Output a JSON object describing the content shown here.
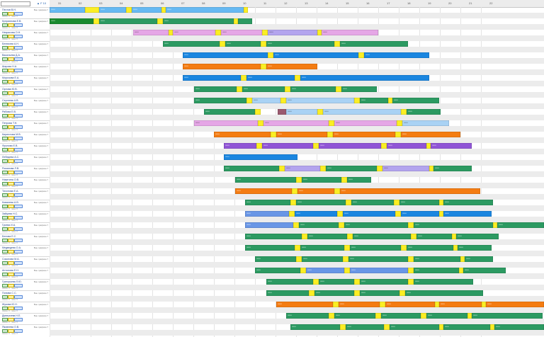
{
  "toolbar": {
    "sort_label": "▲ F 10"
  },
  "colors": {
    "green": "#2c9a62",
    "blue": "#1a86e0",
    "orange": "#f47c12",
    "purple": "#9055d6",
    "pink": "#e5a6e6",
    "lilac": "#b3a4ee",
    "sky": "#66b9f2",
    "yellow": "#fbee24",
    "dkgreen": "#198a2e",
    "light": "#a9d2f4",
    "cornflower": "#6996e6",
    "wine": "#9a5a6f"
  },
  "timeline": {
    "days": [
      "31",
      "02",
      "03",
      "04",
      "05",
      "06",
      "07",
      "08",
      "09",
      "10",
      "11",
      "12",
      "13",
      "14",
      "15",
      "16",
      "17",
      "18",
      "19",
      "20",
      "21",
      "22"
    ]
  },
  "employees": [
    {
      "name": "Пестов В.Н.",
      "status": "Вне графика 7",
      "sub": "смены: 0 · часы: 0"
    },
    {
      "name": "Куприянова Е.В.",
      "status": "Вне графика 7",
      "sub": "смены: 0 · часы: 0"
    },
    {
      "name": "Некрасова О.Н.",
      "status": "Вне графика 7",
      "sub": "смены: 0 · часы: 0"
    },
    {
      "name": "Беликова А.Н.",
      "status": "Вне графика 7",
      "sub": "смены: 0 · часы: 0"
    },
    {
      "name": "Васильева Д.А.",
      "status": "Вне графика 7",
      "sub": "смены: 0 · часы: 0"
    },
    {
      "name": "Шарова Н.А.",
      "status": "Вне графика 7",
      "sub": "смены: 0 · часы: 0"
    },
    {
      "name": "Морозова Е.А.",
      "status": "Вне графика 7",
      "sub": "смены: 0 · часы: 0"
    },
    {
      "name": "Орлова Ю.В.",
      "status": "Вне графика 7",
      "sub": "смены: 0 · часы: 0"
    },
    {
      "name": "Сергеева А.В.",
      "status": "Вне графика 7",
      "sub": "смены: 0 · часы: 0"
    },
    {
      "name": "Рябова Е.В.",
      "status": "Вне графика 7",
      "sub": "смены: 0 · часы: 0"
    },
    {
      "name": "Петрова Т.Н.",
      "status": "Вне графика 7",
      "sub": "смены: 0 · часы: 0"
    },
    {
      "name": "Кириллова М.В.",
      "status": "Вне графика 7",
      "sub": "смены: 0 · часы: 0"
    },
    {
      "name": "Фролова Е.В.",
      "status": "Вне графика 7",
      "sub": "смены: 0 · часы: 0"
    },
    {
      "name": "Лебедева А.С.",
      "status": "Вне графика 7",
      "sub": "смены: 0 · часы: 0"
    },
    {
      "name": "Романова Л.В.",
      "status": "Вне графика 7",
      "sub": "смены: 0 · часы: 0"
    },
    {
      "name": "Никитина О.В.",
      "status": "Вне графика 7",
      "sub": "смены: 0 · часы: 0"
    },
    {
      "name": "Тихонова Е.А.",
      "status": "Вне графика 7",
      "sub": "смены: 0 · часы: 0"
    },
    {
      "name": "Ковалева А.В.",
      "status": "Вне графика 7",
      "sub": "смены: 0 · часы: 0"
    },
    {
      "name": "Зайцева Н.С.",
      "status": "Вне графика 7",
      "sub": "смены: 0 · часы: 0"
    },
    {
      "name": "Гусева И.А.",
      "status": "Вне графика 7",
      "sub": "смены: 0 · часы: 0"
    },
    {
      "name": "Белова Е.С.",
      "status": "Вне графика 7",
      "sub": "смены: 0 · часы: 0"
    },
    {
      "name": "Медведева О.А.",
      "status": "Вне графика 7",
      "sub": "смены: 0 · часы: 0"
    },
    {
      "name": "Соколова М.А.",
      "status": "Вне графика 7",
      "sub": "смены: 0 · часы: 0"
    },
    {
      "name": "Антонова Е.Н.",
      "status": "Вне графика 7",
      "sub": "смены: 0 · часы: 0"
    },
    {
      "name": "Григорьева Л.Ю.",
      "status": "Вне графика 7",
      "sub": "смены: 0 · часы: 0"
    },
    {
      "name": "Попова С.С.",
      "status": "Вне графика 7",
      "sub": "смены: 0 · часы: 0"
    },
    {
      "name": "Жукова Ю.Н.",
      "status": "Вне графика 7",
      "sub": "смены: 0 · часы: 0"
    },
    {
      "name": "Дмитриева Н.Е.",
      "status": "Вне графика 7",
      "sub": "смены: 0 · часы: 0"
    },
    {
      "name": "Яковлева О.В.",
      "status": "Вне графика 7",
      "sub": "смены: 0 · часы: 0"
    }
  ],
  "rows": [
    [
      [
        "sky",
        0,
        50
      ],
      [
        "yellow",
        50,
        20
      ],
      [
        "sky",
        70,
        38
      ],
      [
        "yellow",
        108,
        8
      ],
      [
        "sky",
        116,
        42
      ],
      [
        "yellow",
        158,
        6
      ],
      [
        "sky",
        164,
        110
      ],
      [
        "yellow",
        274,
        6
      ]
    ],
    [
      [
        "dkgreen",
        0,
        62
      ],
      [
        "yellow",
        62,
        8
      ],
      [
        "green",
        70,
        82
      ],
      [
        "yellow",
        152,
        8
      ],
      [
        "green",
        160,
        100
      ],
      [
        "yellow",
        260,
        6
      ],
      [
        "green",
        266,
        20
      ]
    ],
    [
      [
        "pink",
        118,
        50
      ],
      [
        "yellow",
        168,
        6
      ],
      [
        "pink",
        174,
        60
      ],
      [
        "yellow",
        234,
        8
      ],
      [
        "pink",
        242,
        58
      ],
      [
        "yellow",
        300,
        8
      ],
      [
        "lilac",
        308,
        70
      ],
      [
        "yellow",
        378,
        6
      ],
      [
        "pink",
        384,
        80
      ]
    ],
    [
      [
        "green",
        160,
        80
      ],
      [
        "yellow",
        240,
        8
      ],
      [
        "green",
        248,
        50
      ],
      [
        "yellow",
        298,
        8
      ],
      [
        "green",
        306,
        96
      ],
      [
        "yellow",
        402,
        8
      ],
      [
        "green",
        410,
        96
      ]
    ],
    [
      [
        "blue",
        188,
        120
      ],
      [
        "yellow",
        308,
        8
      ],
      [
        "blue",
        316,
        120
      ],
      [
        "yellow",
        436,
        8
      ],
      [
        "blue",
        444,
        92
      ]
    ],
    [
      [
        "orange",
        188,
        110
      ],
      [
        "yellow",
        298,
        8
      ],
      [
        "orange",
        306,
        72
      ]
    ],
    [
      [
        "blue",
        188,
        82
      ],
      [
        "yellow",
        270,
        8
      ],
      [
        "blue",
        278,
        68
      ],
      [
        "yellow",
        346,
        8
      ],
      [
        "blue",
        354,
        182
      ]
    ],
    [
      [
        "green",
        204,
        60
      ],
      [
        "yellow",
        264,
        8
      ],
      [
        "green",
        272,
        60
      ],
      [
        "yellow",
        332,
        8
      ],
      [
        "green",
        340,
        64
      ],
      [
        "yellow",
        404,
        8
      ],
      [
        "green",
        412,
        50
      ]
    ],
    [
      [
        "green",
        204,
        74
      ],
      [
        "yellow",
        278,
        8
      ],
      [
        "light",
        286,
        40
      ],
      [
        "yellow",
        326,
        8
      ],
      [
        "light",
        334,
        96
      ],
      [
        "yellow",
        430,
        8
      ],
      [
        "green",
        438,
        40
      ],
      [
        "yellow",
        478,
        6
      ],
      [
        "green",
        484,
        66
      ]
    ],
    [
      [
        "green",
        218,
        72
      ],
      [
        "yellow",
        290,
        8
      ],
      [
        "wine",
        322,
        12
      ],
      [
        "light",
        334,
        44
      ],
      [
        "yellow",
        378,
        8
      ],
      [
        "light",
        386,
        110
      ],
      [
        "yellow",
        496,
        8
      ],
      [
        "green",
        504,
        48
      ]
    ],
    [
      [
        "pink",
        204,
        90
      ],
      [
        "yellow",
        294,
        8
      ],
      [
        "pink",
        302,
        92
      ],
      [
        "yellow",
        394,
        8
      ],
      [
        "pink",
        402,
        88
      ],
      [
        "yellow",
        490,
        8
      ],
      [
        "light",
        498,
        66
      ]
    ],
    [
      [
        "orange",
        232,
        80
      ],
      [
        "yellow",
        312,
        8
      ],
      [
        "orange",
        320,
        72
      ],
      [
        "yellow",
        392,
        8
      ],
      [
        "orange",
        400,
        88
      ],
      [
        "yellow",
        488,
        8
      ],
      [
        "orange",
        496,
        84
      ]
    ],
    [
      [
        "purple",
        246,
        46
      ],
      [
        "yellow",
        292,
        8
      ],
      [
        "purple",
        300,
        72
      ],
      [
        "yellow",
        372,
        8
      ],
      [
        "purple",
        380,
        88
      ],
      [
        "yellow",
        468,
        8
      ],
      [
        "purple",
        476,
        56
      ],
      [
        "yellow",
        532,
        6
      ],
      [
        "purple",
        538,
        58
      ]
    ],
    [
      [
        "blue",
        246,
        104
      ]
    ],
    [
      [
        "green",
        246,
        78
      ],
      [
        "yellow",
        324,
        8
      ],
      [
        "lilac",
        332,
        50
      ],
      [
        "yellow",
        382,
        8
      ],
      [
        "green",
        390,
        72
      ],
      [
        "yellow",
        462,
        8
      ],
      [
        "lilac",
        470,
        66
      ],
      [
        "yellow",
        536,
        6
      ],
      [
        "green",
        542,
        54
      ]
    ],
    [
      [
        "green",
        262,
        86
      ],
      [
        "yellow",
        348,
        8
      ],
      [
        "green",
        356,
        56
      ],
      [
        "yellow",
        412,
        8
      ],
      [
        "green",
        420,
        34
      ]
    ],
    [
      [
        "orange",
        262,
        80
      ],
      [
        "yellow",
        342,
        8
      ],
      [
        "orange",
        350,
        52
      ],
      [
        "yellow",
        402,
        8
      ],
      [
        "orange",
        410,
        198
      ]
    ],
    [
      [
        "green",
        276,
        64
      ],
      [
        "yellow",
        340,
        8
      ],
      [
        "green",
        348,
        70
      ],
      [
        "yellow",
        418,
        8
      ],
      [
        "green",
        426,
        60
      ],
      [
        "yellow",
        486,
        8
      ],
      [
        "green",
        494,
        56
      ],
      [
        "yellow",
        550,
        6
      ],
      [
        "green",
        556,
        70
      ]
    ],
    [
      [
        "cornflower",
        276,
        62
      ],
      [
        "yellow",
        338,
        8
      ],
      [
        "blue",
        346,
        60
      ],
      [
        "yellow",
        406,
        8
      ],
      [
        "blue",
        414,
        74
      ],
      [
        "yellow",
        488,
        8
      ],
      [
        "blue",
        496,
        54
      ],
      [
        "yellow",
        550,
        6
      ],
      [
        "blue",
        556,
        68
      ]
    ],
    [
      [
        "cornflower",
        276,
        68
      ],
      [
        "yellow",
        344,
        8
      ],
      [
        "green",
        352,
        56
      ],
      [
        "yellow",
        408,
        8
      ],
      [
        "green",
        416,
        90
      ],
      [
        "yellow",
        506,
        8
      ],
      [
        "green",
        514,
        112
      ],
      [
        "yellow",
        626,
        6
      ],
      [
        "green",
        632,
        66
      ]
    ],
    [
      [
        "green",
        276,
        80
      ],
      [
        "yellow",
        356,
        8
      ],
      [
        "green",
        364,
        56
      ],
      [
        "yellow",
        420,
        8
      ],
      [
        "green",
        428,
        82
      ],
      [
        "yellow",
        510,
        8
      ],
      [
        "green",
        518,
        50
      ],
      [
        "yellow",
        568,
        6
      ],
      [
        "green",
        574,
        60
      ]
    ],
    [
      [
        "green",
        276,
        70
      ],
      [
        "yellow",
        346,
        8
      ],
      [
        "green",
        354,
        62
      ],
      [
        "yellow",
        416,
        8
      ],
      [
        "green",
        424,
        72
      ],
      [
        "yellow",
        496,
        8
      ],
      [
        "green",
        504,
        66
      ],
      [
        "yellow",
        570,
        6
      ],
      [
        "green",
        576,
        48
      ]
    ],
    [
      [
        "green",
        290,
        58
      ],
      [
        "yellow",
        348,
        8
      ],
      [
        "green",
        356,
        58
      ],
      [
        "yellow",
        414,
        8
      ],
      [
        "green",
        422,
        84
      ],
      [
        "yellow",
        506,
        8
      ],
      [
        "green",
        514,
        66
      ],
      [
        "yellow",
        580,
        6
      ],
      [
        "green",
        586,
        40
      ]
    ],
    [
      [
        "green",
        290,
        64
      ],
      [
        "yellow",
        354,
        8
      ],
      [
        "cornflower",
        362,
        54
      ],
      [
        "yellow",
        416,
        8
      ],
      [
        "cornflower",
        424,
        82
      ],
      [
        "yellow",
        506,
        8
      ],
      [
        "green",
        514,
        64
      ],
      [
        "yellow",
        578,
        6
      ],
      [
        "green",
        584,
        60
      ]
    ],
    [
      [
        "green",
        306,
        66
      ],
      [
        "yellow",
        372,
        8
      ],
      [
        "green",
        380,
        50
      ],
      [
        "yellow",
        430,
        8
      ],
      [
        "green",
        438,
        68
      ],
      [
        "yellow",
        506,
        8
      ],
      [
        "green",
        514,
        84
      ]
    ],
    [
      [
        "green",
        306,
        60
      ],
      [
        "yellow",
        366,
        8
      ],
      [
        "green",
        374,
        56
      ],
      [
        "yellow",
        430,
        8
      ],
      [
        "green",
        438,
        56
      ],
      [
        "yellow",
        494,
        8
      ],
      [
        "green",
        502,
        110
      ]
    ],
    [
      [
        "orange",
        320,
        80
      ],
      [
        "yellow",
        400,
        8
      ],
      [
        "orange",
        408,
        58
      ],
      [
        "yellow",
        466,
        8
      ],
      [
        "orange",
        474,
        70
      ],
      [
        "yellow",
        544,
        6
      ],
      [
        "orange",
        550,
        60
      ],
      [
        "yellow",
        610,
        6
      ],
      [
        "orange",
        616,
        82
      ]
    ],
    [
      [
        "green",
        334,
        60
      ],
      [
        "yellow",
        394,
        8
      ],
      [
        "green",
        402,
        58
      ],
      [
        "yellow",
        460,
        8
      ],
      [
        "green",
        468,
        56
      ],
      [
        "yellow",
        524,
        8
      ],
      [
        "green",
        532,
        58
      ],
      [
        "yellow",
        590,
        6
      ],
      [
        "green",
        596,
        100
      ]
    ],
    [
      [
        "green",
        340,
        70
      ],
      [
        "yellow",
        410,
        8
      ],
      [
        "green",
        418,
        54
      ],
      [
        "yellow",
        472,
        8
      ],
      [
        "green",
        480,
        70
      ],
      [
        "yellow",
        550,
        6
      ],
      [
        "green",
        556,
        66
      ],
      [
        "yellow",
        622,
        6
      ],
      [
        "green",
        628,
        70
      ]
    ]
  ]
}
